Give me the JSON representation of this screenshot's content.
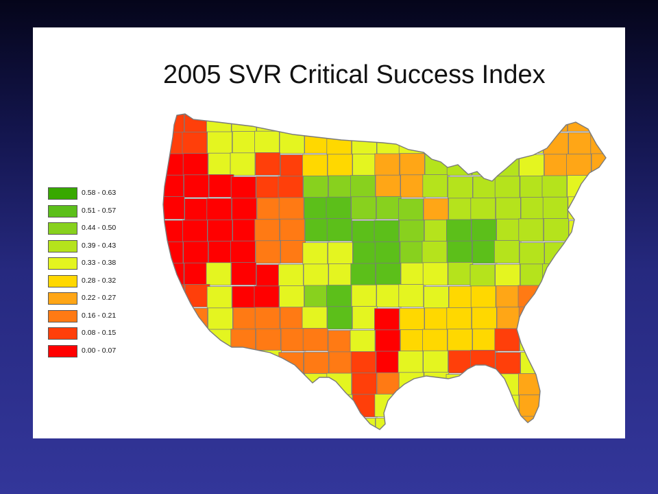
{
  "title": "2005 SVR Critical Success Index",
  "legend": [
    {
      "label": "0.58 - 0.63",
      "color": "#38a800"
    },
    {
      "label": "0.51 - 0.57",
      "color": "#5cbf1a"
    },
    {
      "label": "0.44 - 0.50",
      "color": "#88d11e"
    },
    {
      "label": "0.39 - 0.43",
      "color": "#b5e31c"
    },
    {
      "label": "0.33 - 0.38",
      "color": "#e4f520"
    },
    {
      "label": "0.28 - 0.32",
      "color": "#ffd800"
    },
    {
      "label": "0.22 - 0.27",
      "color": "#ffa616"
    },
    {
      "label": "0.16 - 0.21",
      "color": "#ff7a14"
    },
    {
      "label": "0.08 - 0.15",
      "color": "#ff3f0a"
    },
    {
      "label": "0.00 - 0.07",
      "color": "#ff0000"
    }
  ],
  "map": {
    "region": "contiguous United States",
    "outline_color": "#7a7a7a"
  }
}
